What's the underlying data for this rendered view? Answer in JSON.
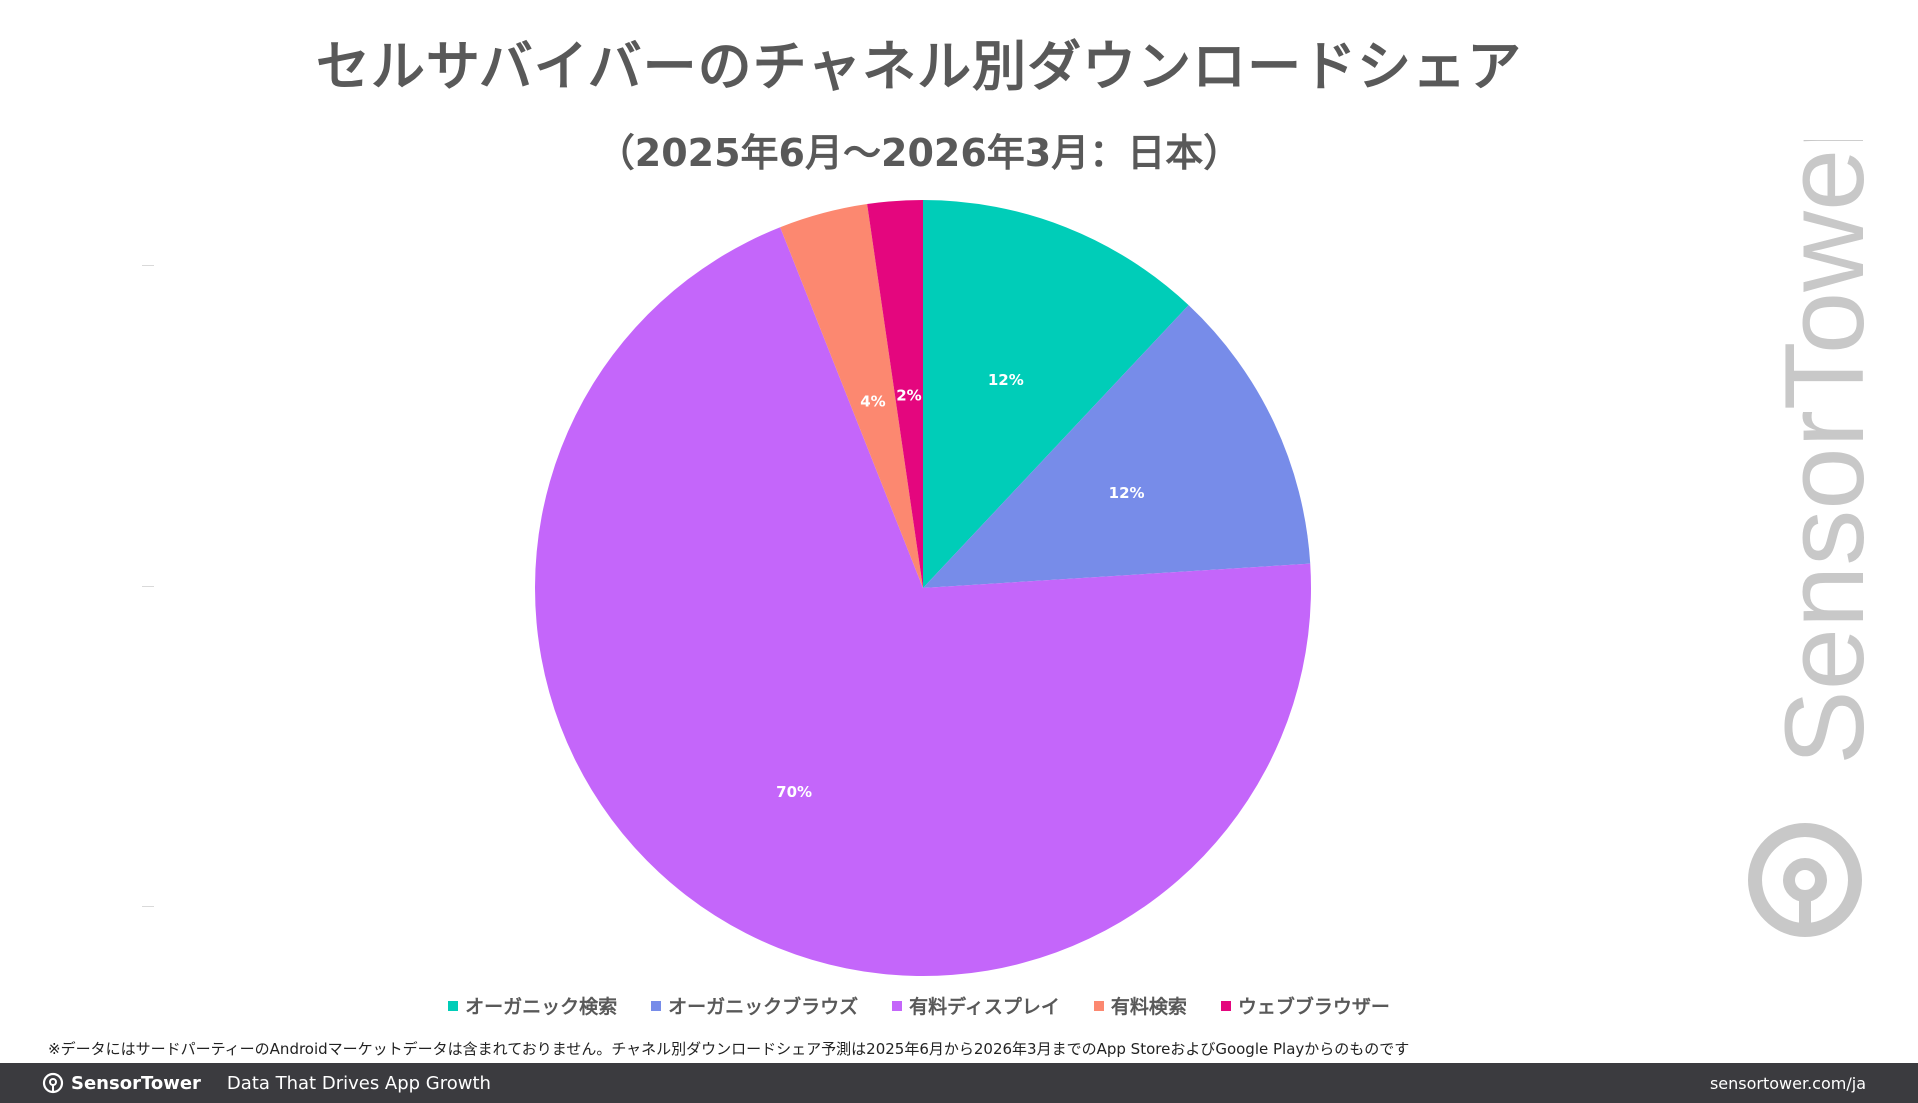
{
  "chart_data": {
    "type": "pie",
    "title": "セルサバイバーのチャネル別ダウンロードシェア",
    "subtitle": "（2025年6月～2026年3月：日本）",
    "slices": [
      {
        "name": "オーガニック検索",
        "value": 12,
        "label": "12%",
        "color": "#00cdb8"
      },
      {
        "name": "オーガニックブラウズ",
        "value": 12,
        "label": "12%",
        "color": "#778ce9"
      },
      {
        "name": "有料ディスプレイ",
        "value": 70,
        "label": "70%",
        "color": "#c466fa"
      },
      {
        "name": "有料検索",
        "value": 3.7,
        "label": "4%",
        "color": "#fc8870"
      },
      {
        "name": "ウェブブラウザー",
        "value": 2.3,
        "label": "2%",
        "color": "#e4067e"
      }
    ],
    "legend_position": "bottom"
  },
  "footnote": "※データにはサードパーティーのAndroidマーケットデータは含まれておりません。チャネル別ダウンロードシェア予測は2025年6月から2026年3月までのApp StoreおよびGoogle Playからのものです",
  "watermark": "SensorTower",
  "footer": {
    "brand": "SensorTower",
    "tagline": "Data That Drives App Growth",
    "url": "sensortower.com/ja"
  }
}
